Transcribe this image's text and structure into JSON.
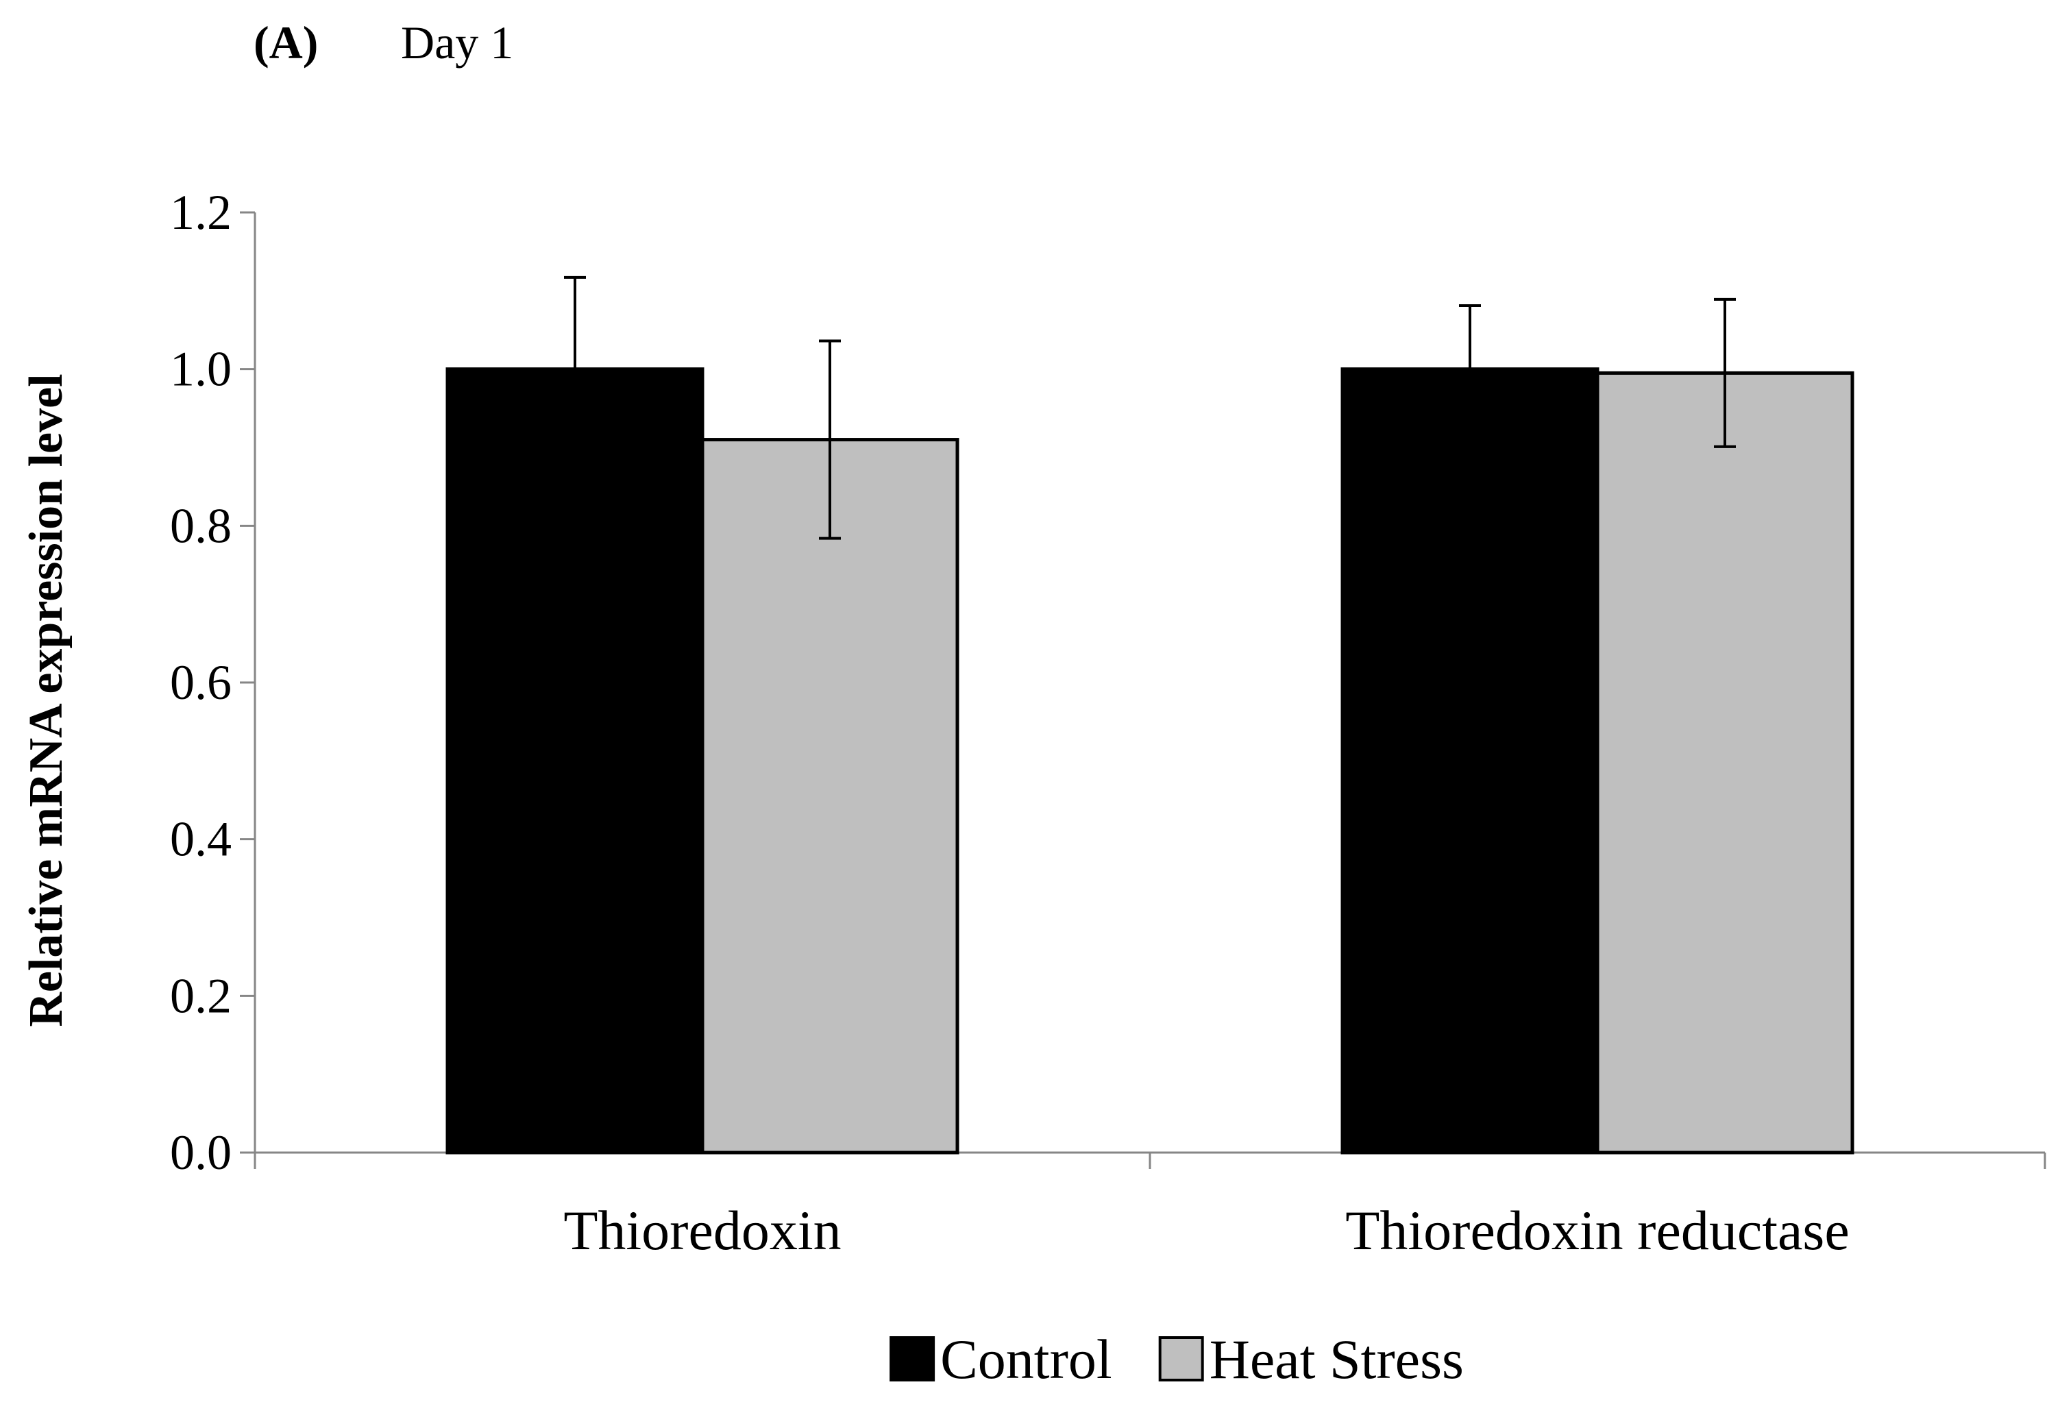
{
  "chart_data": {
    "type": "bar",
    "panel_label": "(A)",
    "title": "Day 1",
    "xlabel": "",
    "ylabel": "Relative mRNA expression level",
    "ylim": [
      0,
      1.2
    ],
    "yticks": [
      "0.0",
      "0.2",
      "0.4",
      "0.6",
      "0.8",
      "1.0",
      "1.2"
    ],
    "ytick_values": [
      0,
      0.2,
      0.4,
      0.6,
      0.8,
      1.0,
      1.2
    ],
    "grid": false,
    "legend_position": "bottom-center",
    "categories": [
      "Thioredoxin",
      "Thioredoxin reductase"
    ],
    "series": [
      {
        "name": "Control",
        "color": "#000000",
        "values": [
          1.0,
          1.0
        ],
        "errors": [
          0.117,
          0.081
        ]
      },
      {
        "name": "Heat Stress",
        "color": "#bfbfbf",
        "values": [
          0.91,
          0.995
        ],
        "errors": [
          0.126,
          0.094
        ]
      }
    ]
  }
}
